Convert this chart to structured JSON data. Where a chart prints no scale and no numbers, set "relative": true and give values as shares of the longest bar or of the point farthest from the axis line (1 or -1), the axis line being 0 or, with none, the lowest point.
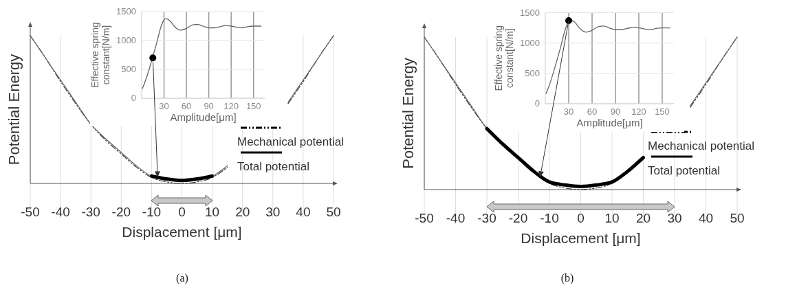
{
  "chart_data": [
    {
      "type": "line",
      "relative": true,
      "xlim": [
        -50,
        50
      ],
      "xticks": [
        -50,
        -40,
        -30,
        -20,
        -10,
        0,
        10,
        20,
        30,
        40,
        50
      ],
      "xlabel": "Displacement [μm]",
      "ylabel": "Potential Energy",
      "grid": "x",
      "legend": "bottom right",
      "annotations": [
        "(a)"
      ],
      "series": [
        {
          "name": "Mechanical potential",
          "color": "#333333",
          "line_style": "dashed",
          "x": [
            -50,
            -45,
            -40,
            -35,
            -30,
            -25,
            -20,
            -15,
            -10,
            -5,
            0,
            5,
            10,
            15,
            20,
            25,
            30,
            35,
            40,
            45,
            50
          ],
          "values": [
            1,
            0.85,
            0.69,
            0.54,
            0.4,
            0.29,
            0.2,
            0.11,
            0.04,
            0.01,
            0,
            0.01,
            0.04,
            0.11,
            null,
            null,
            null,
            0.54,
            0.69,
            0.85,
            1
          ]
        },
        {
          "name": "Total potential",
          "color": "#666666",
          "x": [
            -50,
            -45,
            -40,
            -35,
            -30,
            -25,
            -20,
            -15,
            -10,
            -5,
            0,
            5,
            10,
            15,
            20,
            25,
            30,
            35,
            40,
            45,
            50
          ],
          "values": [
            1,
            0.85,
            0.7,
            0.55,
            0.4,
            0.3,
            0.21,
            0.12,
            0.05,
            0.03,
            0.02,
            0.03,
            0.05,
            0.12,
            null,
            null,
            null,
            0.55,
            0.7,
            0.85,
            1
          ]
        },
        {
          "color": "#000000",
          "x": [
            -10,
            -5,
            0,
            5,
            10
          ],
          "values": [
            0.05,
            0.03,
            0.02,
            0.03,
            0.05
          ]
        }
      ]
    },
    {
      "type": "line",
      "xlim": [
        0,
        165
      ],
      "xticks": [
        30,
        60,
        90,
        120,
        150
      ],
      "ylim": [
        0,
        1500
      ],
      "yticks": [
        0,
        500,
        1000,
        1500
      ],
      "xlabel": "Amplitude[μm]",
      "ylabel": "Effective spring\nconstant[N/m]",
      "grid": true,
      "series": [
        {
          "color": "#666666",
          "x": [
            1,
            5,
            10,
            15,
            20,
            25,
            30,
            33,
            38,
            45,
            52,
            60,
            68,
            75,
            82,
            90,
            97,
            105,
            113,
            120,
            128,
            135,
            142,
            150,
            160
          ],
          "values": [
            170,
            300,
            500,
            720,
            950,
            1200,
            1360,
            1380,
            1340,
            1230,
            1180,
            1210,
            1270,
            1280,
            1250,
            1220,
            1220,
            1240,
            1260,
            1250,
            1230,
            1220,
            1240,
            1250,
            1250
          ]
        },
        {
          "type": "scatter",
          "color": "#000000",
          "marker": "circle",
          "x": [
            15
          ],
          "values": [
            700
          ]
        }
      ]
    },
    {
      "type": "line",
      "relative": true,
      "xlim": [
        -50,
        50
      ],
      "xticks": [
        -50,
        -40,
        -30,
        -20,
        -10,
        0,
        10,
        20,
        30,
        40,
        50
      ],
      "xlabel": "Displacement [μm]",
      "ylabel": "Potential Energy",
      "grid": "x",
      "legend": "bottom right",
      "annotations": [
        "(b)"
      ],
      "series": [
        {
          "name": "Mechanical potential",
          "color": "#333333",
          "line_style": "dashed",
          "x": [
            -50,
            -45,
            -40,
            -35,
            -30,
            -25,
            -20,
            -15,
            -10,
            -5,
            0,
            5,
            10,
            15,
            20,
            25,
            30,
            35,
            40,
            45,
            50
          ],
          "values": [
            1,
            0.85,
            0.69,
            0.54,
            0.4,
            0.29,
            0.2,
            0.11,
            0.04,
            0.01,
            0,
            0.01,
            0.04,
            0.11,
            0.2,
            null,
            null,
            0.54,
            0.69,
            0.85,
            1
          ]
        },
        {
          "name": "Total potential",
          "color": "#666666",
          "x": [
            -50,
            -45,
            -40,
            -35,
            -30,
            -25,
            -20,
            -15,
            -10,
            -5,
            0,
            5,
            10,
            15,
            20,
            25,
            30,
            35,
            40,
            45,
            50
          ],
          "values": [
            1,
            0.85,
            0.7,
            0.55,
            0.4,
            0.3,
            0.21,
            0.12,
            0.05,
            0.03,
            0.02,
            0.03,
            0.05,
            0.12,
            0.21,
            null,
            null,
            0.55,
            0.7,
            0.85,
            1
          ]
        },
        {
          "color": "#000000",
          "x": [
            -30,
            -25,
            -20,
            -15,
            -10,
            -5,
            0,
            5,
            10,
            15,
            20
          ],
          "values": [
            0.4,
            0.3,
            0.21,
            0.12,
            0.05,
            0.03,
            0.02,
            0.03,
            0.05,
            0.12,
            0.21
          ]
        }
      ]
    },
    {
      "type": "line",
      "xlim": [
        0,
        165
      ],
      "xticks": [
        30,
        60,
        90,
        120,
        150
      ],
      "ylim": [
        0,
        1500
      ],
      "yticks": [
        0,
        500,
        1000,
        1500
      ],
      "xlabel": "Amplitude[μm]",
      "ylabel": "Effective spring\nconstant[N/m]",
      "grid": true,
      "series": [
        {
          "color": "#666666",
          "x": [
            1,
            5,
            10,
            15,
            20,
            25,
            30,
            33,
            38,
            45,
            52,
            60,
            68,
            75,
            82,
            90,
            97,
            105,
            113,
            120,
            128,
            135,
            142,
            150,
            160
          ],
          "values": [
            170,
            300,
            500,
            720,
            950,
            1200,
            1360,
            1380,
            1340,
            1230,
            1180,
            1210,
            1270,
            1280,
            1250,
            1220,
            1220,
            1240,
            1260,
            1250,
            1230,
            1220,
            1240,
            1250,
            1250
          ]
        },
        {
          "type": "scatter",
          "color": "#000000",
          "marker": "circle",
          "x": [
            30
          ],
          "values": [
            1370
          ]
        }
      ]
    }
  ]
}
